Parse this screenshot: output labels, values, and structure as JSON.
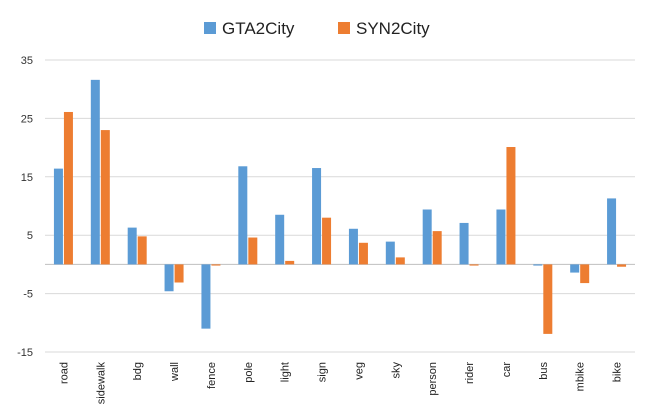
{
  "chart_data": {
    "type": "bar",
    "categories": [
      "road",
      "sidewalk",
      "bdg",
      "wall",
      "fence",
      "pole",
      "light",
      "sign",
      "veg",
      "sky",
      "person",
      "rider",
      "car",
      "bus",
      "mbike",
      "bike"
    ],
    "series": [
      {
        "name": "GTA2City",
        "color": "#5b9bd5",
        "values": [
          16.4,
          31.6,
          6.3,
          -4.6,
          -11.0,
          16.8,
          8.5,
          16.5,
          6.1,
          3.9,
          9.4,
          7.1,
          9.4,
          -0.2,
          -1.4,
          11.3
        ]
      },
      {
        "name": "SYN2City",
        "color": "#ed7d31",
        "values": [
          26.1,
          23.0,
          4.8,
          -3.1,
          -0.2,
          4.6,
          0.6,
          8.0,
          3.7,
          1.2,
          5.7,
          -0.2,
          20.1,
          -11.9,
          -3.2,
          -0.4
        ]
      }
    ],
    "yticks": [
      "35",
      "25",
      "15",
      "5",
      "-5",
      "-15"
    ],
    "ylim": [
      -15,
      35
    ],
    "grid": true,
    "legend_position": "top-center"
  }
}
